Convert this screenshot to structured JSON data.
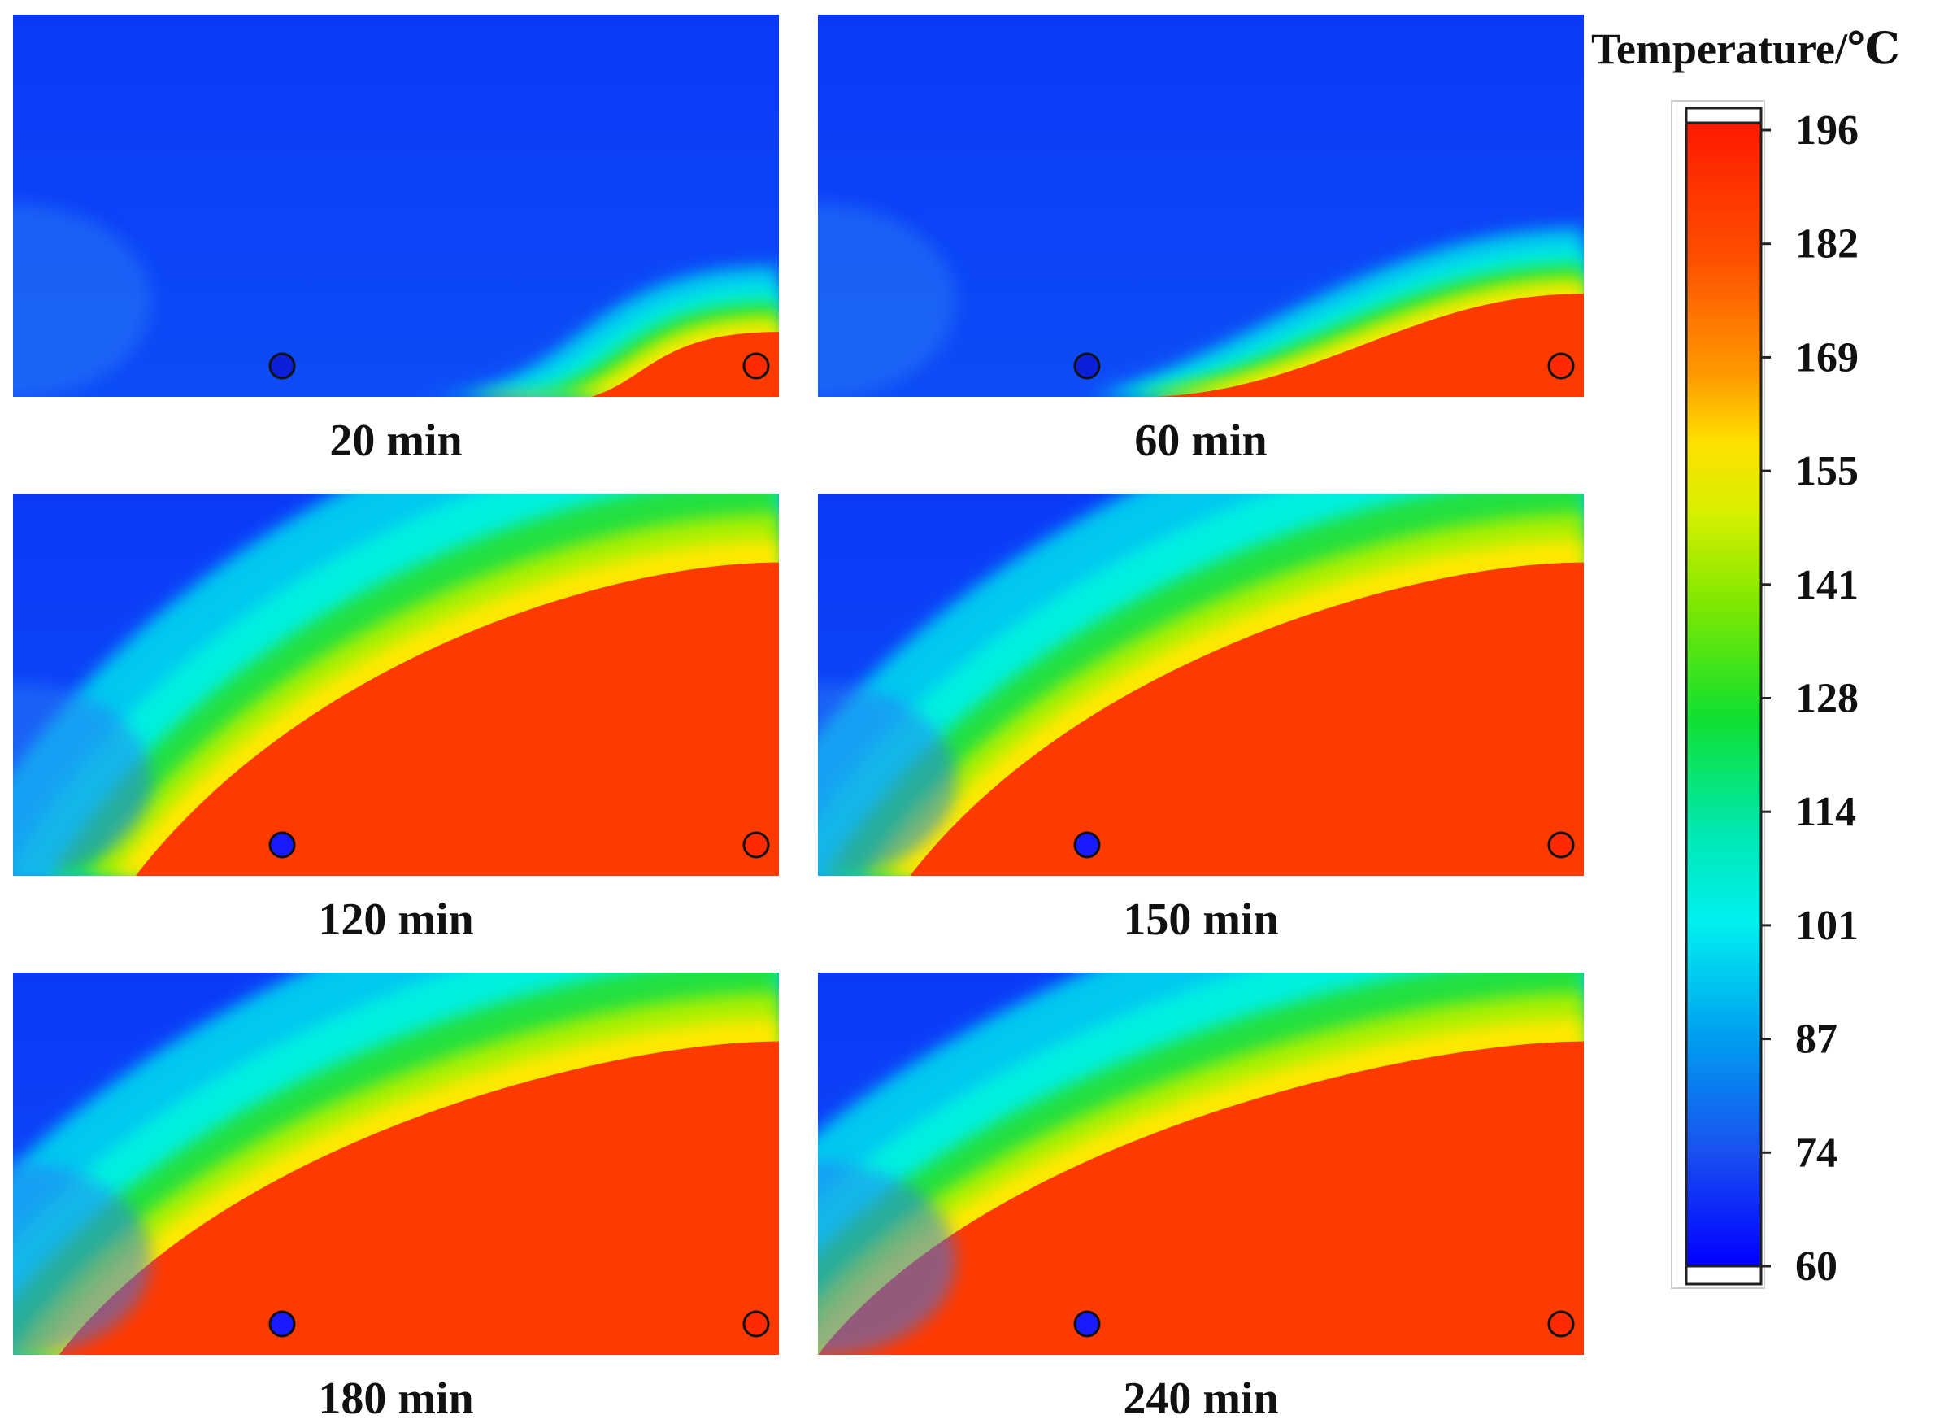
{
  "chart_data": {
    "type": "heatmap",
    "colorbar": {
      "title": "Temperature/℃",
      "min": 60,
      "max": 196,
      "ticks": [
        "196",
        "182",
        "169",
        "155",
        "141",
        "128",
        "114",
        "101",
        "87",
        "74",
        "60"
      ]
    },
    "panels": [
      {
        "caption": "20 min",
        "front_start": 0.62,
        "front_top": 0.83,
        "cold_marker_hot": false
      },
      {
        "caption": "60 min",
        "front_start": 0.44,
        "front_top": 0.73,
        "cold_marker_hot": false
      },
      {
        "caption": "120 min",
        "front_start": 0.16,
        "front_top": 0.18,
        "cold_marker_hot": true
      },
      {
        "caption": "150 min",
        "front_start": 0.12,
        "front_top": 0.18,
        "cold_marker_hot": true
      },
      {
        "caption": "180 min",
        "front_start": 0.06,
        "front_top": 0.18,
        "cold_marker_hot": true
      },
      {
        "caption": "240 min",
        "front_start": 0.0,
        "front_top": 0.18,
        "cold_marker_hot": true
      }
    ],
    "markers": {
      "cold_color": "#1a1aff",
      "cold_color_dim": "#0a1fd8",
      "hot_color": "#ff2a00"
    }
  }
}
